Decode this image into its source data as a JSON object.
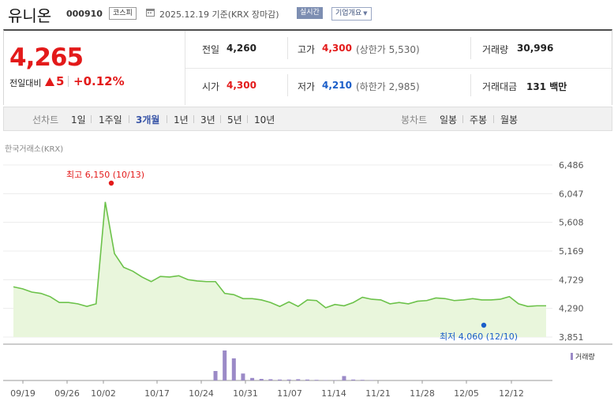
{
  "header": {
    "name": "유니온",
    "code": "000910",
    "market": "코스피",
    "date": "2025.12.19  기준(KRX 장마감)",
    "realtime": "실시간",
    "company_overview": "기업개요"
  },
  "summary": {
    "price": "4,265",
    "change_label": "전일대비",
    "change_amount": "5",
    "change_percent": "+0.12%",
    "prev_close_label": "전일",
    "prev_close": "4,260",
    "open_label": "시가",
    "open": "4,300",
    "high_label": "고가",
    "high": "4,300",
    "upper_limit": "(상한가 5,530)",
    "low_label": "저가",
    "low": "4,210",
    "lower_limit": "(하한가 2,985)",
    "volume_label": "거래량",
    "volume": "30,996",
    "value_label": "거래대금",
    "value": "131 백만"
  },
  "tabs": {
    "line_chart_label": "선차트",
    "periods": [
      "1일",
      "1주일",
      "3개월",
      "1년",
      "3년",
      "5년",
      "10년"
    ],
    "active_period": "3개월",
    "candle_label": "봉차트",
    "candles": [
      "일봉",
      "주봉",
      "월봉"
    ]
  },
  "exchange_label": "한국거래소(KRX)",
  "chart_data": {
    "type": "area",
    "ylim": [
      3851,
      6486
    ],
    "y_ticks": [
      "6,486",
      "6,047",
      "5,608",
      "5,169",
      "4,729",
      "4,290",
      "3,851"
    ],
    "x_ticks": [
      "09/19",
      "09/26",
      "10/02",
      "10/17",
      "10/24",
      "10/31",
      "11/07",
      "11/14",
      "11/21",
      "11/28",
      "12/05",
      "12/12"
    ],
    "high_annotation": "최고 6,150 (10/13)",
    "low_annotation": "최저 4,060 (12/10)",
    "volume_legend": "거래량",
    "series": [
      {
        "values": [
          4620,
          4590,
          4540,
          4520,
          4470,
          4380,
          4380,
          4360,
          4320,
          4360,
          5920,
          5130,
          4920,
          4860,
          4770,
          4700,
          4780,
          4770,
          4790,
          4730,
          4710,
          4700,
          4700,
          4520,
          4500,
          4440,
          4440,
          4420,
          4380,
          4320,
          4390,
          4320,
          4420,
          4410,
          4300,
          4350,
          4330,
          4380,
          4460,
          4430,
          4420,
          4360,
          4380,
          4360,
          4400,
          4410,
          4450,
          4440,
          4410,
          4420,
          4440,
          4420,
          4420,
          4430,
          4470,
          4360,
          4320,
          4330,
          4330
        ]
      }
    ],
    "volume": [
      0,
      0,
      0,
      0,
      0,
      0,
      0,
      0,
      0,
      0,
      0,
      0,
      0,
      0,
      0,
      0,
      0,
      0,
      0,
      0,
      0,
      0,
      30,
      95,
      70,
      22,
      8,
      5,
      4,
      3,
      3,
      4,
      3,
      2,
      1,
      1,
      14,
      3,
      2,
      1,
      0,
      0,
      0,
      0,
      0,
      0,
      0,
      0,
      0,
      0,
      0,
      0,
      0,
      0,
      0,
      0,
      0,
      0,
      0
    ],
    "colors": {
      "line": "#6cc24a",
      "fill": "#e9f6dc",
      "volume": "#9b8ac7",
      "high": "#e31a1a",
      "low": "#1a5ec9"
    }
  }
}
